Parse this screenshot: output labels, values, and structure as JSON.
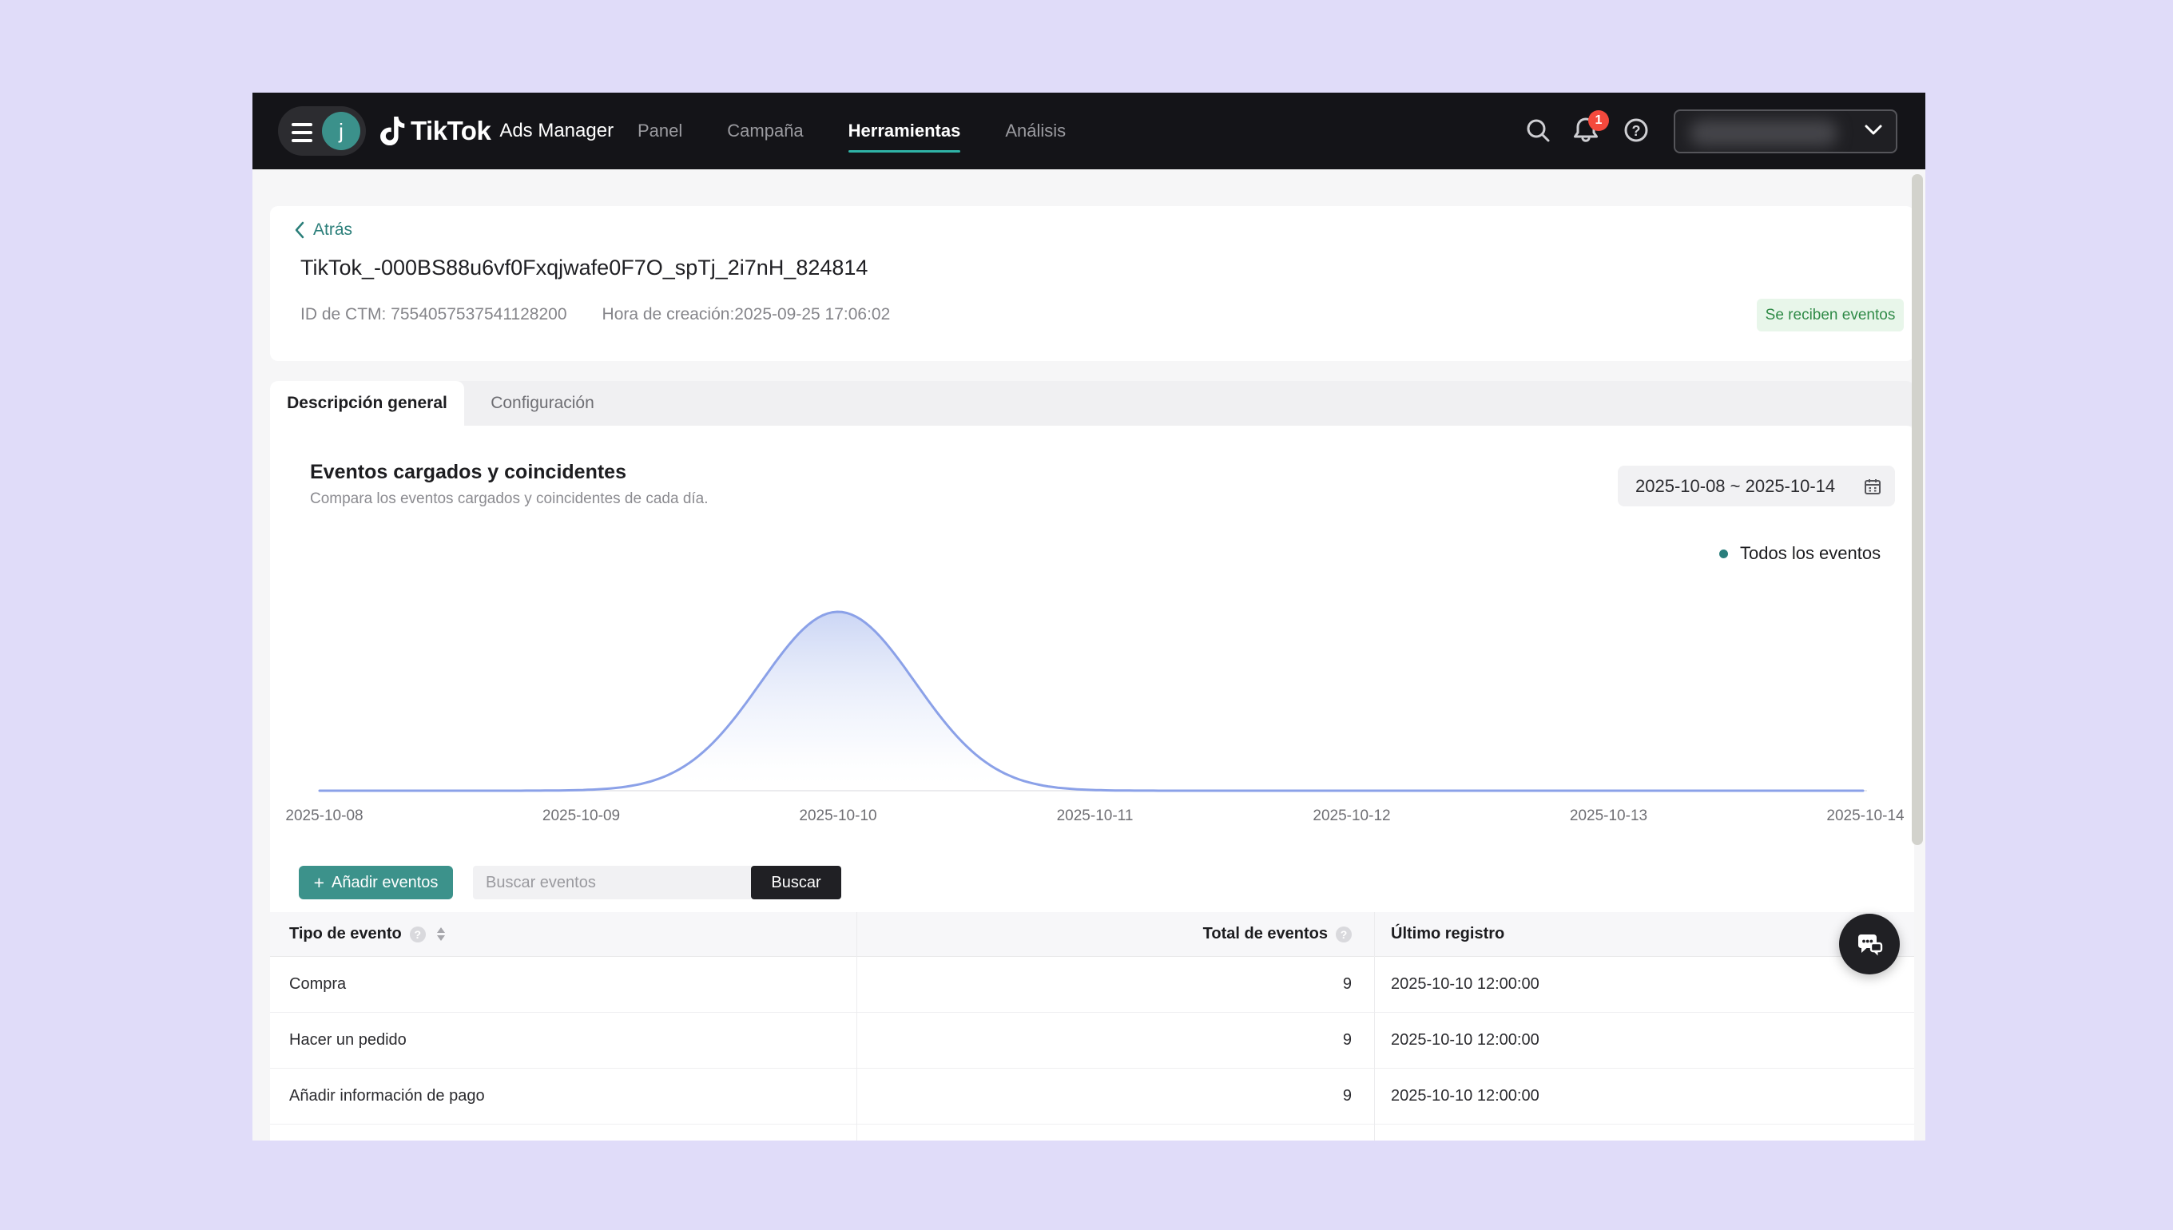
{
  "header": {
    "brand_product": "TikTok",
    "brand_suffix": "Ads Manager",
    "avatar_letter": "j",
    "nav": [
      {
        "label": "Panel",
        "active": false
      },
      {
        "label": "Campaña",
        "active": false
      },
      {
        "label": "Herramientas",
        "active": true
      },
      {
        "label": "Análisis",
        "active": false
      }
    ],
    "notification_count": "1"
  },
  "breadcrumb": {
    "back_label": "Atrás"
  },
  "page": {
    "title": "TikTok_-000BS88u6vf0Fxqjwafe0F7O_spTj_2i7nH_824814",
    "ctm_id": "ID de CTM: 7554057537541128200",
    "created": "Hora de creación:2025-09-25 17:06:02",
    "status_badge": "Se reciben eventos"
  },
  "tabs": [
    {
      "label": "Descripción general",
      "active": true
    },
    {
      "label": "Configuración",
      "active": false
    }
  ],
  "chart_section": {
    "title": "Eventos cargados y coincidentes",
    "subtitle": "Compara los eventos cargados y coincidentes de cada día.",
    "date_range": "2025-10-08 ~ 2025-10-14",
    "legend_label": "Todos los eventos"
  },
  "chart_data": {
    "type": "area",
    "title": "Eventos cargados y coincidentes",
    "x": [
      "2025-10-08",
      "2025-10-09",
      "2025-10-10",
      "2025-10-11",
      "2025-10-12",
      "2025-10-13",
      "2025-10-14"
    ],
    "series": [
      {
        "name": "Todos los eventos",
        "values": [
          0,
          0,
          27,
          0,
          0,
          0,
          0
        ]
      }
    ],
    "ylim": [
      0,
      30
    ],
    "grid": false,
    "legend_position": "top-right",
    "line_color": "#8ba1e8",
    "fill_top_color": "#bfccf2",
    "smoothing": "gaussian-bell-peak-at-2025-10-10"
  },
  "actions": {
    "plus_symbol": "+",
    "add_events_label": "Añadir eventos",
    "search_placeholder": "Buscar eventos",
    "search_button_label": "Buscar"
  },
  "table": {
    "columns": [
      {
        "label": "Tipo de evento",
        "help": true,
        "sortable": true
      },
      {
        "label": "Total de eventos",
        "help": true,
        "align": "right"
      },
      {
        "label": "Último registro"
      }
    ],
    "rows": [
      {
        "event_type": "Compra",
        "total": "9",
        "last_record": "2025-10-10 12:00:00"
      },
      {
        "event_type": "Hacer un pedido",
        "total": "9",
        "last_record": "2025-10-10 12:00:00"
      },
      {
        "event_type": "Añadir información de pago",
        "total": "9",
        "last_record": "2025-10-10 12:00:00"
      }
    ]
  },
  "colors": {
    "background_purple": "#e0dcf9",
    "topbar_dark": "#141418",
    "accent_teal_button": "#3c928b",
    "nav_underline_teal": "#2fb3a7",
    "legend_teal": "#2a7e7c",
    "back_link_teal": "#2a7e79",
    "status_green_text": "#2f8a47",
    "status_green_bg": "#e8f6ea",
    "notification_red": "#f4493d",
    "chart_line": "#8ba1e8"
  }
}
